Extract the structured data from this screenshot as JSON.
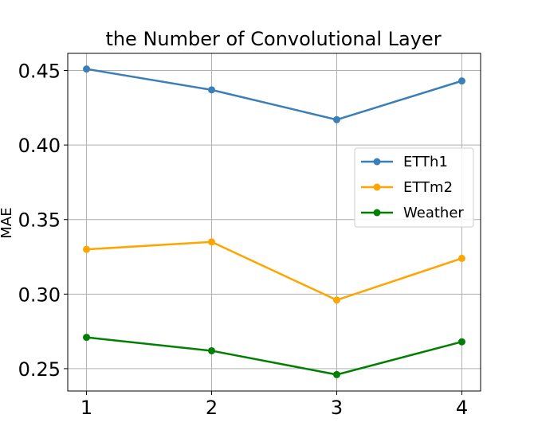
{
  "chart_data": {
    "type": "line",
    "title": "the Number of Convolutional Layer",
    "xlabel": "",
    "ylabel": "MAE",
    "x": [
      1,
      2,
      3,
      4
    ],
    "x_tick_labels": [
      "1",
      "2",
      "3",
      "4"
    ],
    "y_ticks": [
      0.25,
      0.3,
      0.35,
      0.4,
      0.45
    ],
    "y_tick_labels": [
      "0.25",
      "0.30",
      "0.35",
      "0.40",
      "0.45"
    ],
    "ylim": [
      0.235,
      0.4615
    ],
    "xlim": [
      0.85,
      4.15
    ],
    "grid": true,
    "legend_position": "center-right",
    "series": [
      {
        "name": "ETTh1",
        "color": "#3a7fb8",
        "marker": "circle",
        "values": [
          0.451,
          0.437,
          0.417,
          0.443
        ]
      },
      {
        "name": "ETTm2",
        "color": "#ffa500",
        "marker": "circle",
        "values": [
          0.33,
          0.335,
          0.296,
          0.324
        ]
      },
      {
        "name": "Weather",
        "color": "#008000",
        "marker": "circle",
        "values": [
          0.271,
          0.262,
          0.246,
          0.268
        ]
      }
    ]
  }
}
